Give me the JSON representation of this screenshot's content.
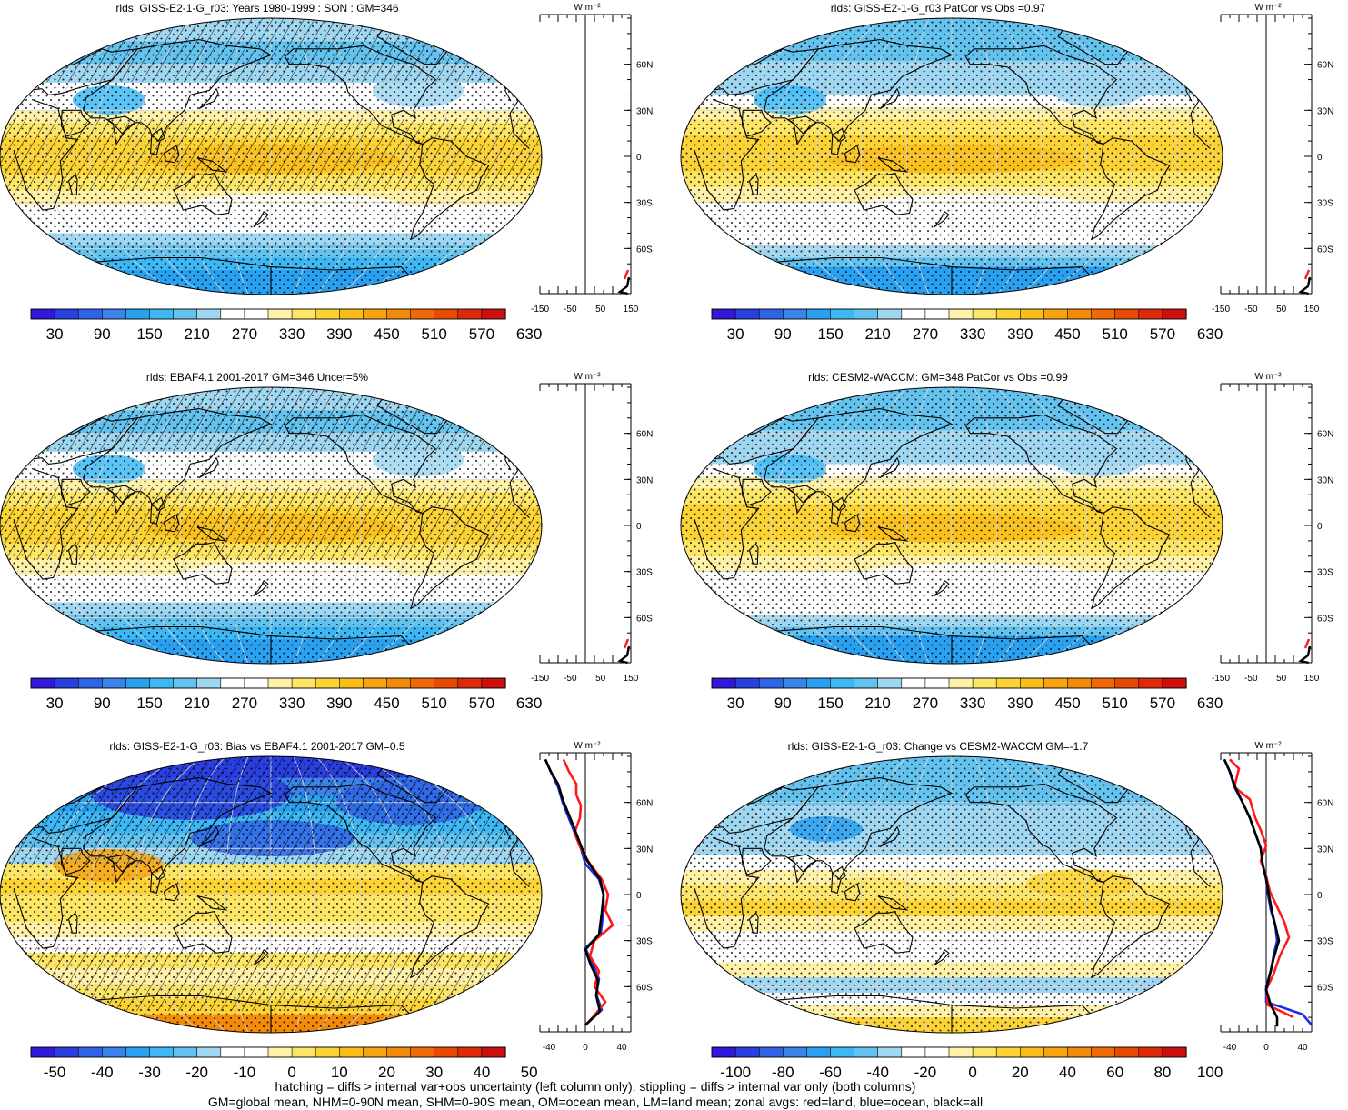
{
  "panels": [
    {
      "id": "p1",
      "title": "rlds: GISS-E2-1-G_r03: Years 1980-1999 : SON : GM=346",
      "kind": "abs",
      "hatch": "model",
      "colorbar_labels": [
        "30",
        "90",
        "150",
        "210",
        "270",
        "330",
        "390",
        "450",
        "510",
        "570",
        "630"
      ],
      "zonal": {
        "unit": "W m⁻²",
        "ticks": [
          "-150",
          "-50",
          "50",
          "150"
        ],
        "lat_labels": [
          "60N",
          "30N",
          "0",
          "30S",
          "60S"
        ]
      }
    },
    {
      "id": "p2",
      "title": "rlds: GISS-E2-1-G_r03 PatCor vs Obs =0.97",
      "kind": "abs",
      "hatch": "none",
      "colorbar_labels": [
        "30",
        "90",
        "150",
        "210",
        "270",
        "330",
        "390",
        "450",
        "510",
        "570",
        "630"
      ],
      "zonal": {
        "unit": "W m⁻²",
        "ticks": [
          "-150",
          "-50",
          "50",
          "150"
        ],
        "lat_labels": [
          "60N",
          "30N",
          "0",
          "30S",
          "60S"
        ]
      }
    },
    {
      "id": "p3",
      "title": "rlds: EBAF4.1 2001-2017 GM=346 Uncer=5%",
      "kind": "abs",
      "hatch": "obs",
      "colorbar_labels": [
        "30",
        "90",
        "150",
        "210",
        "270",
        "330",
        "390",
        "450",
        "510",
        "570",
        "630"
      ],
      "zonal": {
        "unit": "W m⁻²",
        "ticks": [
          "-150",
          "-50",
          "50",
          "150"
        ],
        "lat_labels": [
          "60N",
          "30N",
          "0",
          "30S",
          "60S"
        ]
      }
    },
    {
      "id": "p4",
      "title": "rlds: CESM2-WACCM: GM=348 PatCor vs Obs =0.99",
      "kind": "abs",
      "hatch": "none",
      "colorbar_labels": [
        "30",
        "90",
        "150",
        "210",
        "270",
        "330",
        "390",
        "450",
        "510",
        "570",
        "630"
      ],
      "zonal": {
        "unit": "W m⁻²",
        "ticks": [
          "-150",
          "-50",
          "50",
          "150"
        ],
        "lat_labels": [
          "60N",
          "30N",
          "0",
          "30S",
          "60S"
        ]
      }
    },
    {
      "id": "p5",
      "title": "rlds: GISS-E2-1-G_r03: Bias vs EBAF4.1 2001-2017  GM=0.5",
      "kind": "bias",
      "hatch": "bias",
      "colorbar_labels": [
        "-50",
        "-40",
        "-30",
        "-20",
        "-10",
        "0",
        "10",
        "20",
        "30",
        "40",
        "50"
      ],
      "zonal": {
        "unit": "W m⁻²",
        "ticks": [
          "-40",
          "0",
          "40"
        ],
        "lat_labels": [
          "60N",
          "30N",
          "0",
          "30S",
          "60S"
        ]
      }
    },
    {
      "id": "p6",
      "title": "rlds: GISS-E2-1-G_r03: Change vs CESM2-WACCM GM=-1.7",
      "kind": "change",
      "hatch": "none",
      "colorbar_labels": [
        "-100",
        "-80",
        "-60",
        "-40",
        "-20",
        "0",
        "20",
        "40",
        "60",
        "80",
        "100"
      ],
      "zonal": {
        "unit": "W m⁻²",
        "ticks": [
          "-40",
          "0",
          "40"
        ],
        "lat_labels": [
          "60N",
          "30N",
          "0",
          "30S",
          "60S"
        ]
      }
    }
  ],
  "colors": {
    "palette": [
      "#3218d9",
      "#2a3fe0",
      "#2f64e6",
      "#3b83ea",
      "#2aa0f0",
      "#3eb8f5",
      "#63c2ee",
      "#9fd6f1",
      "#ffffff",
      "#ffffff",
      "#fff2a8",
      "#fde566",
      "#fcd335",
      "#f9bd1a",
      "#f6a412",
      "#f38a0a",
      "#ef6a06",
      "#e84a05",
      "#df2a0a",
      "#cc0f0f"
    ],
    "land_line": "#ff1a1a",
    "ocean_line": "#1a2fe0",
    "all_line": "#000000",
    "coast": "#000000",
    "grid": "#d8d8d8"
  },
  "footer": {
    "line1": "hatching = diffs > internal var+obs uncertainty (left column only); stippling = diffs > internal var only (both columns)",
    "line2": "GM=global mean, NHM=0-90N mean, SHM=0-90S mean, OM=ocean mean, LM=land mean; zonal avgs: red=land, blue=ocean, black=all"
  }
}
